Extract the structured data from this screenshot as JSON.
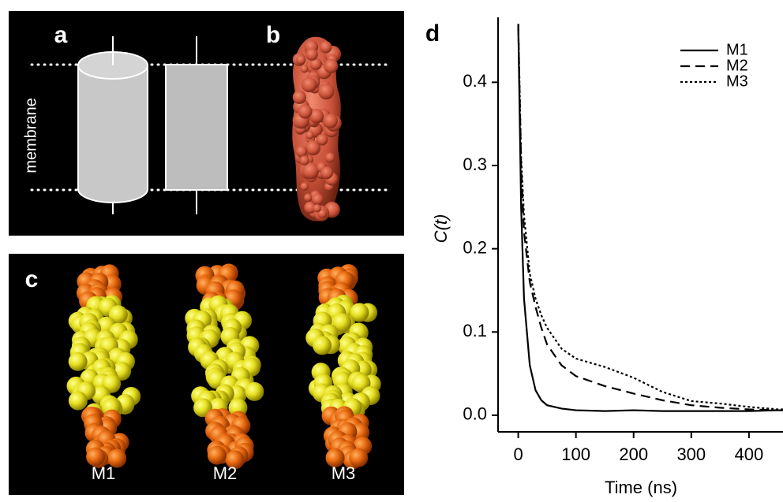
{
  "panels": {
    "a": {
      "label": "a",
      "membrane": "membrane"
    },
    "b": {
      "label": "b"
    },
    "c": {
      "label": "c",
      "molecules": [
        "M1",
        "M2",
        "M3"
      ]
    }
  },
  "chart_data": {
    "type": "line",
    "panel_label": "d",
    "xlabel": "Time (ns)",
    "ylabel": "C(t)",
    "x": [
      0,
      5,
      10,
      20,
      30,
      40,
      50,
      75,
      100,
      150,
      200,
      250,
      300,
      350,
      400,
      450,
      459
    ],
    "series": [
      {
        "name": "M1",
        "color": "#000000",
        "dash": "solid",
        "values": [
          0.47,
          0.25,
          0.14,
          0.06,
          0.03,
          0.018,
          0.012,
          0.008,
          0.006,
          0.005,
          0.006,
          0.005,
          0.005,
          0.005,
          0.005,
          0.006,
          0.006
        ]
      },
      {
        "name": "M2",
        "color": "#000000",
        "dash": "dashed",
        "values": [
          0.47,
          0.3,
          0.22,
          0.16,
          0.13,
          0.105,
          0.085,
          0.06,
          0.047,
          0.035,
          0.026,
          0.018,
          0.012,
          0.009,
          0.007,
          0.006,
          0.006
        ]
      },
      {
        "name": "M3",
        "color": "#000000",
        "dash": "dotted",
        "values": [
          0.47,
          0.31,
          0.24,
          0.17,
          0.14,
          0.12,
          0.105,
          0.08,
          0.068,
          0.058,
          0.045,
          0.028,
          0.017,
          0.014,
          0.01,
          0.007,
          0.007
        ]
      }
    ],
    "xlim": [
      -35,
      459
    ],
    "ylim": [
      -0.02,
      0.478
    ],
    "xticks": [
      0,
      100,
      200,
      300,
      400
    ],
    "yticks": [
      {
        "value": 0,
        "label": "0.0"
      },
      0.1,
      0.2,
      0.3,
      0.4
    ],
    "grid": false,
    "legend": "upper right"
  }
}
